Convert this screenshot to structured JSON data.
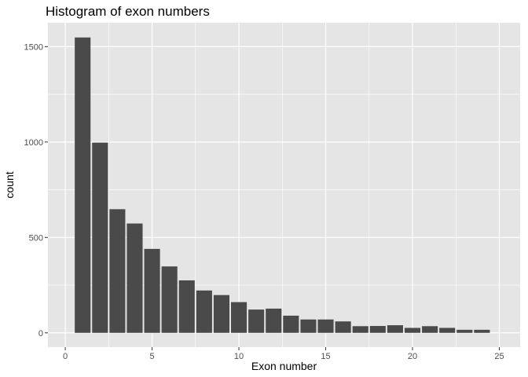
{
  "title": "Histogram of exon numbers",
  "colors": {
    "panel_background": "#e5e5e5",
    "grid": "#ffffff",
    "bar_fill": "#4a4a4a",
    "tick_text": "#4d4d4d"
  },
  "chart_data": {
    "type": "bar",
    "title": "Histogram of exon numbers",
    "xlabel": "Exon number",
    "ylabel": "count",
    "xlim": [
      -1.0,
      26.2
    ],
    "ylim": [
      -75,
      1625
    ],
    "x_ticks": [
      0,
      5,
      10,
      15,
      20,
      25
    ],
    "y_ticks": [
      0,
      500,
      1000,
      1500
    ],
    "bin_width": 1,
    "grid": true,
    "bars": [
      {
        "x": 1,
        "count": 1548
      },
      {
        "x": 2,
        "count": 997
      },
      {
        "x": 3,
        "count": 648
      },
      {
        "x": 4,
        "count": 573
      },
      {
        "x": 5,
        "count": 440
      },
      {
        "x": 6,
        "count": 348
      },
      {
        "x": 7,
        "count": 275
      },
      {
        "x": 8,
        "count": 222
      },
      {
        "x": 9,
        "count": 198
      },
      {
        "x": 10,
        "count": 161
      },
      {
        "x": 11,
        "count": 122
      },
      {
        "x": 12,
        "count": 127
      },
      {
        "x": 13,
        "count": 90
      },
      {
        "x": 14,
        "count": 70
      },
      {
        "x": 15,
        "count": 70
      },
      {
        "x": 16,
        "count": 60
      },
      {
        "x": 17,
        "count": 35
      },
      {
        "x": 18,
        "count": 36
      },
      {
        "x": 19,
        "count": 40
      },
      {
        "x": 20,
        "count": 26
      },
      {
        "x": 21,
        "count": 35
      },
      {
        "x": 22,
        "count": 26
      },
      {
        "x": 23,
        "count": 16
      },
      {
        "x": 24,
        "count": 16
      }
    ]
  }
}
